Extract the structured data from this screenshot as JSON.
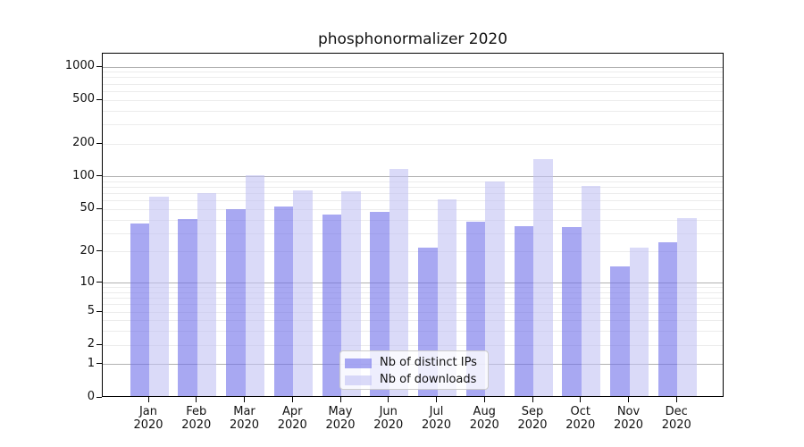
{
  "chart_data": {
    "type": "bar",
    "title": "phosphonormalizer 2020",
    "categories": [
      "Jan",
      "Feb",
      "Mar",
      "Apr",
      "May",
      "Jun",
      "Jul",
      "Aug",
      "Sep",
      "Oct",
      "Nov",
      "Dec"
    ],
    "year_label": "2020",
    "series": [
      {
        "name": "Nb of distinct IPs",
        "color": "#a8a8f2",
        "color_rgba": "rgba(110,110,233,0.6)",
        "values": [
          36,
          39,
          49,
          51,
          43,
          46,
          21,
          37,
          34,
          33,
          14,
          24
        ]
      },
      {
        "name": "Nb of downloads",
        "color": "#dadaf8",
        "color_rgba": "rgba(193,193,243,0.6)",
        "values": [
          63,
          68,
          100,
          72,
          71,
          114,
          60,
          87,
          140,
          80,
          21,
          40
        ]
      }
    ],
    "yscale": "log10(1+x)",
    "ylabel": "",
    "xlabel": "",
    "yticks": [
      0,
      1,
      2,
      5,
      10,
      20,
      50,
      100,
      200,
      500,
      1000
    ],
    "major_gridlines": [
      1,
      10,
      100,
      1000
    ],
    "minor_gridlines": [
      2,
      3,
      4,
      5,
      6,
      7,
      8,
      9,
      20,
      30,
      40,
      50,
      60,
      70,
      80,
      90,
      200,
      300,
      400,
      500,
      600,
      700,
      800,
      900
    ],
    "grid": true,
    "legend_position": "bottom-center",
    "legend_entries": [
      "Nb of distinct IPs",
      "Nb of downloads"
    ]
  }
}
